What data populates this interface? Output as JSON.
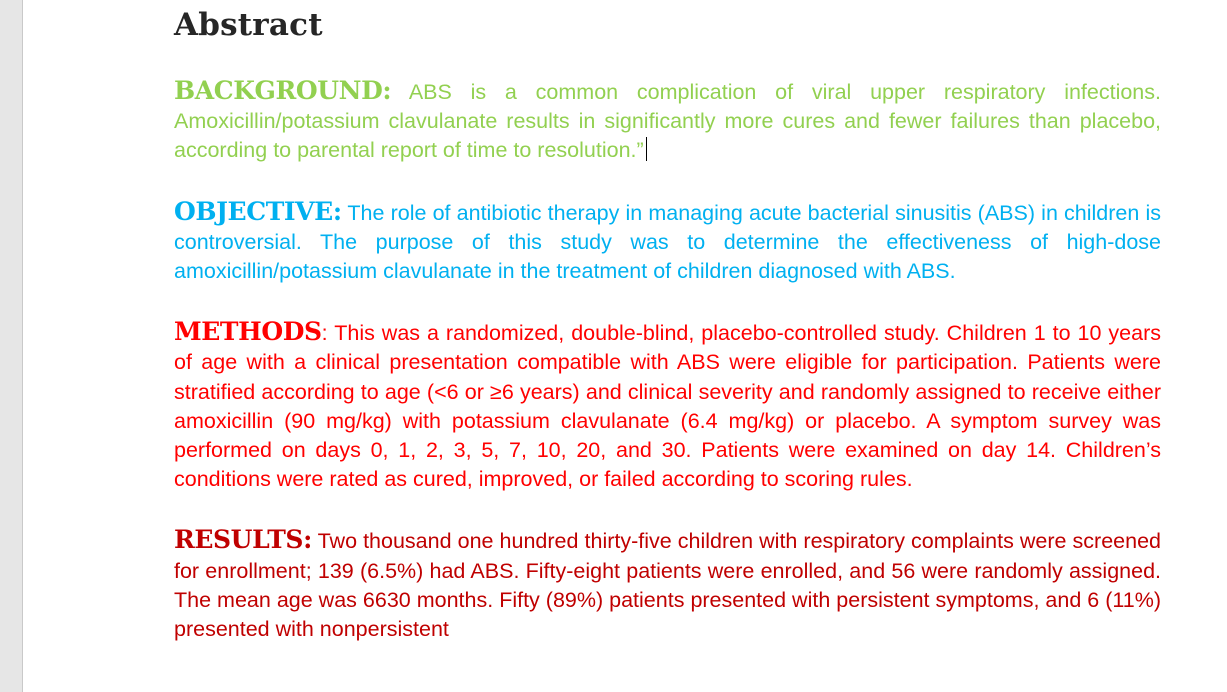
{
  "document": {
    "heading": "Abstract",
    "sections": {
      "background": {
        "label": "BACKGROUND:",
        "text": " ABS is a common complication of viral upper respiratory infections. Amoxicillin/potassium clavulanate results in significantly more cures and fewer failures than placebo, according to parental report of time to resolution.”",
        "color": "#92d050"
      },
      "objective": {
        "label": "OBJECTIVE:",
        "text": " The role of antibiotic therapy in managing acute bacterial sinusitis (ABS) in children is controversial. The purpose of this study was to determine the effectiveness of high-dose amoxicillin/potassium clavulanate in the treatment of children diagnosed with ABS.",
        "color": "#00b0f0"
      },
      "methods": {
        "label": "METHODS",
        "text": ": This was a randomized, double-blind, placebo-controlled study. Children 1 to 10 years of age with a clinical presentation compatible with ABS were eligible for participation. Patients were stratified according to age (<6 or ≥6 years) and clinical severity and randomly assigned to receive either amoxicillin (90 mg/kg) with potassium clavulanate (6.4 mg/kg) or placebo. A symptom survey was performed on days 0, 1, 2, 3, 5, 7, 10, 20, and 30. Patients were examined on day 14. Children’s conditions were rated as cured, improved, or failed according to scoring rules.",
        "color": "#ff0000"
      },
      "results": {
        "label": "RESULTS:",
        "text": " Two thousand one hundred thirty-five children with respiratory complaints were screened for enrollment; 139 (6.5%) had ABS. Fifty-eight patients were enrolled, and 56 were randomly assigned. The mean age was 6630 months. Fifty (89%) patients presented with persistent symptoms, and 6 (11%) presented with nonpersistent",
        "color": "#c00000"
      }
    }
  }
}
